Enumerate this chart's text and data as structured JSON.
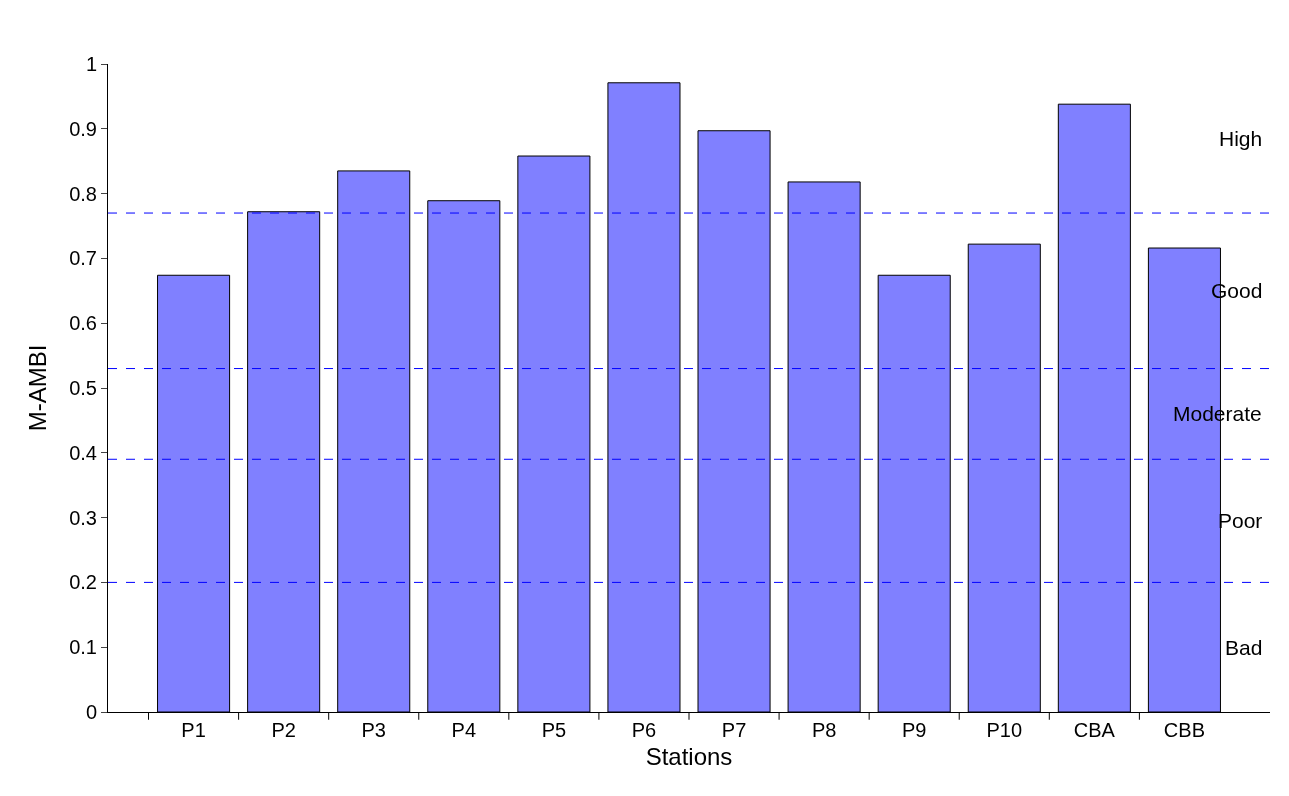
{
  "chart_data": {
    "type": "bar",
    "xlabel": "Stations",
    "ylabel": "M-AMBI",
    "categories": [
      "P1",
      "P2",
      "P3",
      "P4",
      "P5",
      "P6",
      "P7",
      "P8",
      "P9",
      "P10",
      "CBA",
      "CBB"
    ],
    "values": [
      0.674,
      0.772,
      0.835,
      0.789,
      0.858,
      0.971,
      0.897,
      0.818,
      0.674,
      0.722,
      0.938,
      0.716
    ],
    "color": "#8080ff",
    "ylim": [
      0,
      1
    ],
    "yticks": [
      0,
      0.1,
      0.2,
      0.3,
      0.4,
      0.5,
      0.6,
      0.7,
      0.8,
      0.9,
      1
    ],
    "ref_lines": [
      {
        "axis": "y",
        "value": 0.77,
        "color": "#0000ff",
        "line_style": "dashed"
      },
      {
        "axis": "y",
        "value": 0.53,
        "color": "#0000ff",
        "line_style": "dashed"
      },
      {
        "axis": "y",
        "value": 0.39,
        "color": "#0000ff",
        "line_style": "dashed"
      },
      {
        "axis": "y",
        "value": 0.2,
        "color": "#0000ff",
        "line_style": "dashed"
      }
    ],
    "annotations": [
      "High",
      "Good",
      "Moderate",
      "Poor",
      "Bad"
    ]
  }
}
